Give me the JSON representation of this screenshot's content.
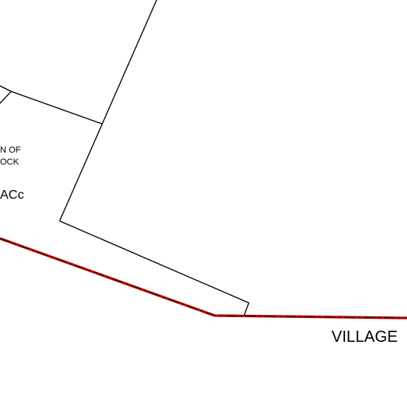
{
  "map": {
    "colors": {
      "background": "#ffffff",
      "parcel_line": "#000000",
      "boundary": "#c00000",
      "boundary_dash": "#1a1a1a"
    },
    "labels": {
      "parcel_name_line1": "N OF",
      "parcel_name_line2": "OCK",
      "parcel_code": "ACc",
      "village": "VILLAGE"
    }
  }
}
